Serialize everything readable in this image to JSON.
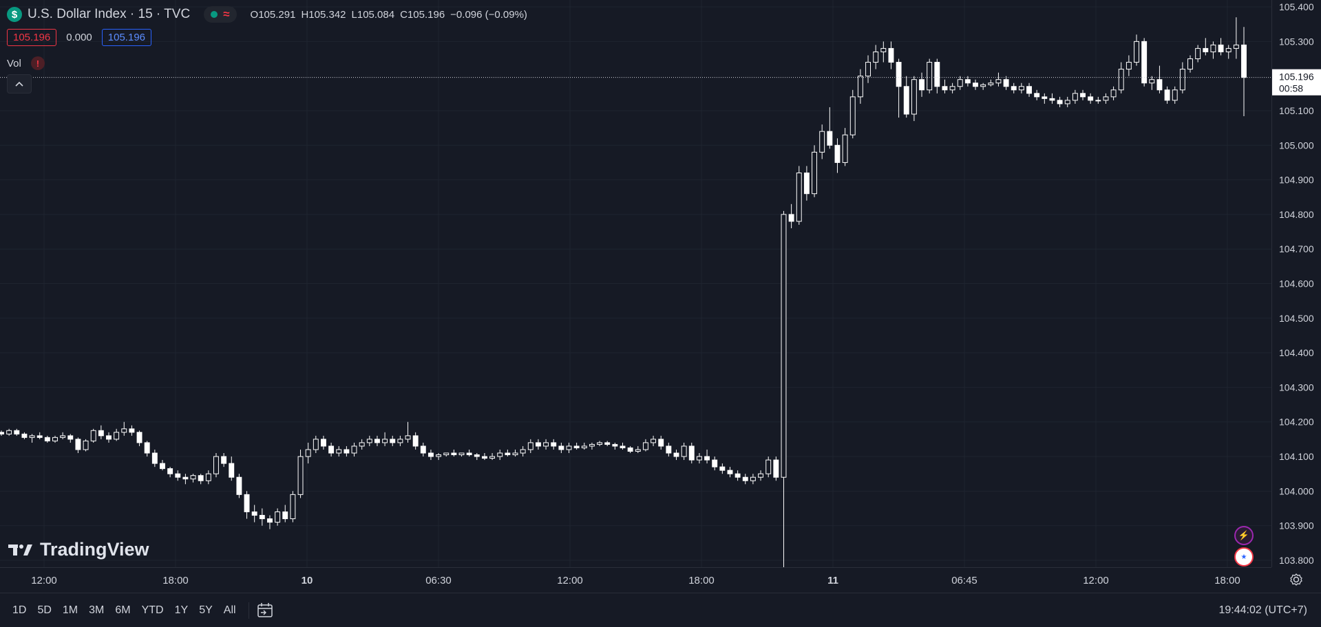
{
  "header": {
    "symbol_title": "U.S. Dollar Index · 15 · TVC",
    "open_label": "O",
    "open": "105.291",
    "high_label": "H",
    "high": "105.342",
    "low_label": "L",
    "low": "105.084",
    "close_label": "C",
    "close": "105.196",
    "change": "−0.096 (−0.09%)"
  },
  "quote": {
    "sell": "105.196",
    "spread": "0.000",
    "buy": "105.196"
  },
  "indicator": {
    "label": "Vol",
    "warning": "!"
  },
  "watermark": "TradingView",
  "price_axis": {
    "ticks": [
      "105.400",
      "105.300",
      "105.196",
      "105.100",
      "105.000",
      "104.900",
      "104.800",
      "104.700",
      "104.600",
      "104.500",
      "104.400",
      "104.300",
      "104.200",
      "104.100",
      "104.000",
      "103.900",
      "103.800"
    ],
    "current_price": "105.196",
    "countdown": "00:58"
  },
  "time_axis": {
    "labels": [
      "12:00",
      "18:00",
      "10",
      "06:30",
      "12:00",
      "18:00",
      "11",
      "06:45",
      "12:00",
      "18:00"
    ]
  },
  "toolbar": {
    "ranges": [
      "1D",
      "5D",
      "1M",
      "3M",
      "6M",
      "YTD",
      "1Y",
      "5Y",
      "All"
    ],
    "clock": "19:44:02 (UTC+7)"
  },
  "colors": {
    "background": "#161a25",
    "candle": "#ffffff",
    "grid": "#1f2430",
    "down": "#f23645",
    "up": "#089981",
    "accent": "#2962ff"
  },
  "chart_data": {
    "type": "candlestick",
    "ylim": [
      103.78,
      105.42
    ],
    "interval_minutes": 15,
    "candles": [
      [
        104.17,
        104.175,
        104.16,
        104.165
      ],
      [
        104.165,
        104.18,
        104.16,
        104.175
      ],
      [
        104.175,
        104.18,
        104.16,
        104.165
      ],
      [
        104.165,
        104.17,
        104.15,
        104.155
      ],
      [
        104.155,
        104.165,
        104.14,
        104.16
      ],
      [
        104.16,
        104.17,
        104.15,
        104.155
      ],
      [
        104.155,
        104.16,
        104.14,
        104.145
      ],
      [
        104.145,
        104.16,
        104.14,
        104.155
      ],
      [
        104.155,
        104.17,
        104.15,
        104.16
      ],
      [
        104.16,
        104.165,
        104.14,
        104.15
      ],
      [
        104.15,
        104.155,
        104.11,
        104.12
      ],
      [
        104.12,
        104.15,
        104.115,
        104.145
      ],
      [
        104.145,
        104.18,
        104.14,
        104.175
      ],
      [
        104.175,
        104.19,
        104.15,
        104.16
      ],
      [
        104.16,
        104.17,
        104.14,
        104.15
      ],
      [
        104.15,
        104.18,
        104.145,
        104.17
      ],
      [
        104.17,
        104.2,
        104.16,
        104.18
      ],
      [
        104.18,
        104.19,
        104.16,
        104.17
      ],
      [
        104.17,
        104.175,
        104.13,
        104.14
      ],
      [
        104.14,
        104.145,
        104.1,
        104.11
      ],
      [
        104.11,
        104.12,
        104.07,
        104.08
      ],
      [
        104.08,
        104.09,
        104.06,
        104.065
      ],
      [
        104.065,
        104.07,
        104.04,
        104.05
      ],
      [
        104.05,
        104.06,
        104.03,
        104.04
      ],
      [
        104.04,
        104.05,
        104.02,
        104.035
      ],
      [
        104.035,
        104.05,
        104.025,
        104.045
      ],
      [
        104.045,
        104.05,
        104.02,
        104.03
      ],
      [
        104.03,
        104.06,
        104.02,
        104.05
      ],
      [
        104.05,
        104.11,
        104.04,
        104.1
      ],
      [
        104.1,
        104.11,
        104.07,
        104.08
      ],
      [
        104.08,
        104.1,
        104.03,
        104.04
      ],
      [
        104.04,
        104.05,
        103.98,
        103.99
      ],
      [
        103.99,
        104.0,
        103.92,
        103.94
      ],
      [
        103.94,
        103.96,
        103.91,
        103.93
      ],
      [
        103.93,
        103.95,
        103.9,
        103.92
      ],
      [
        103.92,
        103.93,
        103.89,
        103.91
      ],
      [
        103.91,
        103.95,
        103.9,
        103.94
      ],
      [
        103.94,
        103.96,
        103.91,
        103.92
      ],
      [
        103.92,
        104.0,
        103.91,
        103.99
      ],
      [
        103.99,
        104.12,
        103.98,
        104.1
      ],
      [
        104.1,
        104.14,
        104.08,
        104.12
      ],
      [
        104.12,
        104.16,
        104.11,
        104.15
      ],
      [
        104.15,
        104.16,
        104.12,
        104.13
      ],
      [
        104.13,
        104.14,
        104.1,
        104.11
      ],
      [
        104.11,
        104.13,
        104.1,
        104.12
      ],
      [
        104.12,
        104.13,
        104.1,
        104.11
      ],
      [
        104.11,
        104.14,
        104.1,
        104.13
      ],
      [
        104.13,
        104.15,
        104.12,
        104.14
      ],
      [
        104.14,
        104.16,
        104.13,
        104.15
      ],
      [
        104.15,
        104.16,
        104.13,
        104.14
      ],
      [
        104.14,
        104.17,
        104.13,
        104.15
      ],
      [
        104.15,
        104.16,
        104.13,
        104.14
      ],
      [
        104.14,
        104.16,
        104.13,
        104.15
      ],
      [
        104.15,
        104.2,
        104.14,
        104.16
      ],
      [
        104.16,
        104.17,
        104.12,
        104.13
      ],
      [
        104.13,
        104.14,
        104.1,
        104.11
      ],
      [
        104.11,
        104.12,
        104.09,
        104.1
      ],
      [
        104.1,
        104.11,
        104.09,
        104.105
      ],
      [
        104.105,
        104.11,
        104.1,
        104.11
      ],
      [
        104.11,
        104.12,
        104.1,
        104.105
      ],
      [
        104.105,
        104.11,
        104.1,
        104.11
      ],
      [
        104.11,
        104.12,
        104.1,
        104.105
      ],
      [
        104.105,
        104.11,
        104.09,
        104.1
      ],
      [
        104.1,
        104.11,
        104.09,
        104.095
      ],
      [
        104.095,
        104.11,
        104.09,
        104.1
      ],
      [
        104.1,
        104.12,
        104.09,
        104.11
      ],
      [
        104.11,
        104.12,
        104.1,
        104.105
      ],
      [
        104.105,
        104.12,
        104.1,
        104.11
      ],
      [
        104.11,
        104.13,
        104.1,
        104.12
      ],
      [
        104.12,
        104.15,
        104.11,
        104.14
      ],
      [
        104.14,
        104.15,
        104.12,
        104.13
      ],
      [
        104.13,
        104.15,
        104.12,
        104.14
      ],
      [
        104.14,
        104.15,
        104.12,
        104.13
      ],
      [
        104.13,
        104.14,
        104.11,
        104.12
      ],
      [
        104.12,
        104.14,
        104.11,
        104.13
      ],
      [
        104.13,
        104.14,
        104.12,
        104.125
      ],
      [
        104.125,
        104.14,
        104.12,
        104.13
      ],
      [
        104.13,
        104.14,
        104.12,
        104.135
      ],
      [
        104.135,
        104.145,
        104.13,
        104.14
      ],
      [
        104.14,
        104.145,
        104.13,
        104.135
      ],
      [
        104.135,
        104.14,
        104.12,
        104.13
      ],
      [
        104.13,
        104.14,
        104.12,
        104.125
      ],
      [
        104.125,
        104.13,
        104.11,
        104.115
      ],
      [
        104.115,
        104.13,
        104.11,
        104.12
      ],
      [
        104.12,
        104.15,
        104.115,
        104.14
      ],
      [
        104.14,
        104.16,
        104.13,
        104.15
      ],
      [
        104.15,
        104.16,
        104.12,
        104.13
      ],
      [
        104.13,
        104.14,
        104.1,
        104.11
      ],
      [
        104.11,
        104.12,
        104.09,
        104.1
      ],
      [
        104.1,
        104.14,
        104.09,
        104.13
      ],
      [
        104.13,
        104.14,
        104.08,
        104.09
      ],
      [
        104.09,
        104.11,
        104.08,
        104.1
      ],
      [
        104.1,
        104.12,
        104.08,
        104.09
      ],
      [
        104.09,
        104.1,
        104.06,
        104.07
      ],
      [
        104.07,
        104.08,
        104.05,
        104.06
      ],
      [
        104.06,
        104.07,
        104.04,
        104.05
      ],
      [
        104.05,
        104.06,
        104.03,
        104.04
      ],
      [
        104.04,
        104.05,
        104.02,
        104.03
      ],
      [
        104.03,
        104.05,
        104.02,
        104.04
      ],
      [
        104.04,
        104.06,
        104.03,
        104.05
      ],
      [
        104.05,
        104.1,
        104.04,
        104.09
      ],
      [
        104.09,
        104.1,
        104.03,
        104.04
      ],
      [
        104.04,
        104.81,
        103.65,
        104.8
      ],
      [
        104.8,
        104.83,
        104.76,
        104.78
      ],
      [
        104.78,
        104.94,
        104.77,
        104.92
      ],
      [
        104.92,
        104.94,
        104.84,
        104.86
      ],
      [
        104.86,
        105.0,
        104.85,
        104.98
      ],
      [
        104.98,
        105.06,
        104.96,
        105.04
      ],
      [
        105.04,
        105.11,
        104.99,
        105.0
      ],
      [
        105.0,
        105.02,
        104.92,
        104.95
      ],
      [
        104.95,
        105.05,
        104.94,
        105.03
      ],
      [
        105.03,
        105.16,
        105.02,
        105.14
      ],
      [
        105.14,
        105.22,
        105.12,
        105.2
      ],
      [
        105.2,
        105.26,
        105.18,
        105.24
      ],
      [
        105.24,
        105.29,
        105.22,
        105.27
      ],
      [
        105.27,
        105.3,
        105.24,
        105.28
      ],
      [
        105.28,
        105.3,
        105.22,
        105.24
      ],
      [
        105.24,
        105.25,
        105.08,
        105.17
      ],
      [
        105.17,
        105.2,
        105.08,
        105.09
      ],
      [
        105.09,
        105.2,
        105.07,
        105.19
      ],
      [
        105.19,
        105.21,
        105.14,
        105.16
      ],
      [
        105.16,
        105.25,
        105.15,
        105.24
      ],
      [
        105.24,
        105.25,
        105.15,
        105.17
      ],
      [
        105.17,
        105.19,
        105.15,
        105.16
      ],
      [
        105.16,
        105.18,
        105.15,
        105.17
      ],
      [
        105.17,
        105.2,
        105.16,
        105.19
      ],
      [
        105.19,
        105.2,
        105.17,
        105.18
      ],
      [
        105.18,
        105.19,
        105.16,
        105.17
      ],
      [
        105.17,
        105.18,
        105.16,
        105.175
      ],
      [
        105.175,
        105.19,
        105.17,
        105.18
      ],
      [
        105.18,
        105.21,
        105.17,
        105.19
      ],
      [
        105.19,
        105.2,
        105.16,
        105.17
      ],
      [
        105.17,
        105.18,
        105.15,
        105.16
      ],
      [
        105.16,
        105.18,
        105.15,
        105.17
      ],
      [
        105.17,
        105.18,
        105.14,
        105.15
      ],
      [
        105.15,
        105.16,
        105.13,
        105.14
      ],
      [
        105.14,
        105.15,
        105.12,
        105.135
      ],
      [
        105.135,
        105.15,
        105.12,
        105.13
      ],
      [
        105.13,
        105.14,
        105.11,
        105.12
      ],
      [
        105.12,
        105.14,
        105.11,
        105.13
      ],
      [
        105.13,
        105.16,
        105.12,
        105.15
      ],
      [
        105.15,
        105.16,
        105.13,
        105.14
      ],
      [
        105.14,
        105.15,
        105.12,
        105.13
      ],
      [
        105.13,
        105.14,
        105.12,
        105.13
      ],
      [
        105.13,
        105.15,
        105.12,
        105.14
      ],
      [
        105.14,
        105.17,
        105.13,
        105.16
      ],
      [
        105.16,
        105.24,
        105.15,
        105.22
      ],
      [
        105.22,
        105.26,
        105.2,
        105.24
      ],
      [
        105.24,
        105.32,
        105.23,
        105.3
      ],
      [
        105.3,
        105.31,
        105.17,
        105.18
      ],
      [
        105.18,
        105.2,
        105.16,
        105.19
      ],
      [
        105.19,
        105.23,
        105.15,
        105.16
      ],
      [
        105.16,
        105.17,
        105.12,
        105.13
      ],
      [
        105.13,
        105.17,
        105.12,
        105.16
      ],
      [
        105.16,
        105.24,
        105.15,
        105.22
      ],
      [
        105.22,
        105.26,
        105.21,
        105.25
      ],
      [
        105.25,
        105.29,
        105.24,
        105.28
      ],
      [
        105.28,
        105.31,
        105.26,
        105.27
      ],
      [
        105.27,
        105.3,
        105.25,
        105.29
      ],
      [
        105.29,
        105.31,
        105.26,
        105.27
      ],
      [
        105.27,
        105.29,
        105.25,
        105.28
      ],
      [
        105.28,
        105.37,
        105.25,
        105.29
      ],
      [
        105.29,
        105.342,
        105.084,
        105.196
      ]
    ]
  }
}
